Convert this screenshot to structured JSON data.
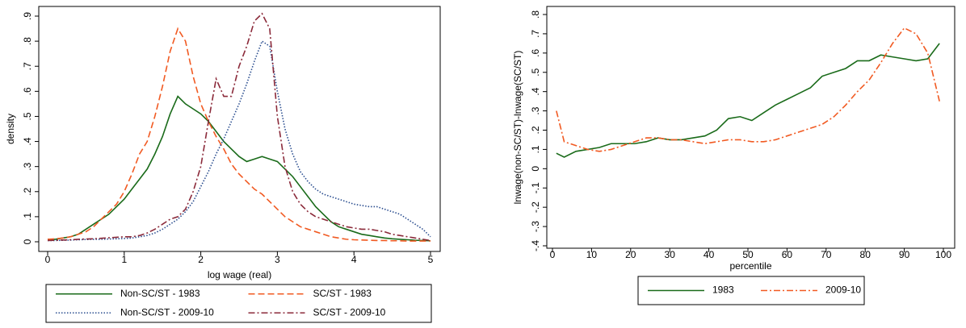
{
  "chart_data": [
    {
      "type": "line",
      "x_label": "log wage (real)",
      "y_label": "density",
      "xlim": [
        0,
        5
      ],
      "ylim": [
        0,
        0.9
      ],
      "xticks": [
        0,
        1,
        2,
        3,
        4,
        5
      ],
      "yticks": [
        0,
        {
          "value": 0.1,
          "label": ".1"
        },
        {
          "value": 0.2,
          "label": ".2"
        },
        {
          "value": 0.3,
          "label": ".3"
        },
        {
          "value": 0.4,
          "label": ".4"
        },
        {
          "value": 0.5,
          "label": ".5"
        },
        {
          "value": 0.6,
          "label": ".6"
        },
        {
          "value": 0.7,
          "label": ".7"
        },
        {
          "value": 0.8,
          "label": ".8"
        },
        {
          "value": 0.9,
          "label": ".9"
        }
      ],
      "legend": "bottom",
      "x": [
        0,
        0.1,
        0.2,
        0.3,
        0.4,
        0.5,
        0.6,
        0.7,
        0.8,
        0.9,
        1.0,
        1.1,
        1.2,
        1.3,
        1.4,
        1.5,
        1.6,
        1.7,
        1.8,
        1.9,
        2.0,
        2.1,
        2.2,
        2.3,
        2.4,
        2.5,
        2.6,
        2.7,
        2.8,
        2.9,
        3.0,
        3.1,
        3.2,
        3.3,
        3.4,
        3.5,
        3.6,
        3.7,
        3.8,
        3.9,
        4.0,
        4.1,
        4.2,
        4.3,
        4.4,
        4.5,
        4.6,
        4.7,
        4.8,
        4.9,
        5.0
      ],
      "series": [
        {
          "name": "Non-SC/ST - 1983",
          "color": "#1a6b1a",
          "style": "solid",
          "values": [
            0.01,
            0.01,
            0.015,
            0.02,
            0.03,
            0.05,
            0.07,
            0.09,
            0.11,
            0.14,
            0.17,
            0.21,
            0.25,
            0.29,
            0.35,
            0.42,
            0.51,
            0.58,
            0.55,
            0.53,
            0.51,
            0.48,
            0.44,
            0.4,
            0.37,
            0.34,
            0.32,
            0.33,
            0.34,
            0.33,
            0.32,
            0.29,
            0.26,
            0.22,
            0.18,
            0.14,
            0.11,
            0.08,
            0.06,
            0.05,
            0.04,
            0.03,
            0.025,
            0.02,
            0.015,
            0.012,
            0.01,
            0.008,
            0.006,
            0.005,
            0.004
          ]
        },
        {
          "name": "SC/ST - 1983",
          "color": "#f15a22",
          "style": "dashed",
          "values": [
            0.01,
            0.012,
            0.015,
            0.02,
            0.03,
            0.04,
            0.06,
            0.09,
            0.12,
            0.15,
            0.2,
            0.27,
            0.35,
            0.4,
            0.5,
            0.62,
            0.76,
            0.85,
            0.8,
            0.66,
            0.55,
            0.48,
            0.42,
            0.37,
            0.31,
            0.27,
            0.24,
            0.21,
            0.19,
            0.16,
            0.13,
            0.1,
            0.08,
            0.06,
            0.05,
            0.04,
            0.03,
            0.02,
            0.015,
            0.01,
            0.008,
            0.007,
            0.006,
            0.005,
            0.005,
            0.004,
            0.004,
            0.003,
            0.003,
            0.003,
            0.003
          ]
        },
        {
          "name": "Non-SC/ST - 2009-10",
          "color": "#2a4d8f",
          "style": "dotted",
          "values": [
            0.005,
            0.005,
            0.006,
            0.007,
            0.008,
            0.009,
            0.01,
            0.01,
            0.011,
            0.012,
            0.013,
            0.015,
            0.02,
            0.025,
            0.035,
            0.05,
            0.07,
            0.09,
            0.12,
            0.16,
            0.22,
            0.28,
            0.35,
            0.41,
            0.48,
            0.55,
            0.63,
            0.72,
            0.8,
            0.78,
            0.6,
            0.45,
            0.35,
            0.28,
            0.24,
            0.21,
            0.19,
            0.18,
            0.17,
            0.16,
            0.15,
            0.145,
            0.14,
            0.14,
            0.13,
            0.12,
            0.11,
            0.09,
            0.07,
            0.05,
            0.02
          ]
        },
        {
          "name": "SC/ST - 2009-10",
          "color": "#8b2a3a",
          "style": "dashdot",
          "values": [
            0.005,
            0.006,
            0.007,
            0.008,
            0.01,
            0.011,
            0.012,
            0.014,
            0.016,
            0.018,
            0.02,
            0.02,
            0.025,
            0.035,
            0.05,
            0.07,
            0.09,
            0.1,
            0.13,
            0.2,
            0.3,
            0.48,
            0.65,
            0.58,
            0.58,
            0.7,
            0.78,
            0.88,
            0.91,
            0.85,
            0.5,
            0.3,
            0.2,
            0.15,
            0.12,
            0.1,
            0.09,
            0.08,
            0.07,
            0.06,
            0.055,
            0.05,
            0.05,
            0.045,
            0.04,
            0.03,
            0.025,
            0.02,
            0.015,
            0.01,
            0.005
          ]
        }
      ]
    },
    {
      "type": "line",
      "x_label": "percentile",
      "y_label": "lnwage(non-SC/ST)-lnwage(SC/ST)",
      "xlim": [
        0,
        100
      ],
      "ylim": [
        -0.4,
        0.8
      ],
      "xticks": [
        0,
        10,
        20,
        30,
        40,
        50,
        60,
        70,
        80,
        90,
        100
      ],
      "yticks": [
        {
          "value": -0.4,
          "label": "-.4"
        },
        {
          "value": -0.3,
          "label": "-.3"
        },
        {
          "value": -0.2,
          "label": "-.2"
        },
        {
          "value": -0.1,
          "label": "-.1"
        },
        0,
        {
          "value": 0.1,
          "label": ".1"
        },
        {
          "value": 0.2,
          "label": ".2"
        },
        {
          "value": 0.3,
          "label": ".3"
        },
        {
          "value": 0.4,
          "label": ".4"
        },
        {
          "value": 0.5,
          "label": ".5"
        },
        {
          "value": 0.6,
          "label": ".6"
        },
        {
          "value": 0.7,
          "label": ".7"
        },
        {
          "value": 0.8,
          "label": ".8"
        }
      ],
      "legend": "bottom",
      "x": [
        1,
        3,
        6,
        9,
        12,
        15,
        18,
        21,
        24,
        27,
        30,
        33,
        36,
        39,
        42,
        45,
        48,
        51,
        54,
        57,
        60,
        63,
        66,
        69,
        72,
        75,
        78,
        81,
        84,
        87,
        90,
        93,
        96,
        99
      ],
      "series": [
        {
          "name": "1983",
          "color": "#1a6b1a",
          "style": "solid",
          "values": [
            0.08,
            0.06,
            0.09,
            0.1,
            0.11,
            0.13,
            0.13,
            0.13,
            0.14,
            0.16,
            0.15,
            0.15,
            0.16,
            0.17,
            0.2,
            0.26,
            0.27,
            0.25,
            0.29,
            0.33,
            0.36,
            0.39,
            0.42,
            0.48,
            0.5,
            0.52,
            0.56,
            0.56,
            0.59,
            0.58,
            0.57,
            0.56,
            0.57,
            0.65
          ]
        },
        {
          "name": "2009-10",
          "color": "#f15a22",
          "style": "dashdot",
          "values": [
            0.3,
            0.14,
            0.12,
            0.1,
            0.09,
            0.1,
            0.12,
            0.14,
            0.16,
            0.16,
            0.15,
            0.15,
            0.14,
            0.13,
            0.14,
            0.15,
            0.15,
            0.14,
            0.14,
            0.15,
            0.17,
            0.19,
            0.21,
            0.23,
            0.27,
            0.33,
            0.4,
            0.46,
            0.55,
            0.65,
            0.73,
            0.7,
            0.6,
            0.35
          ]
        }
      ]
    }
  ]
}
